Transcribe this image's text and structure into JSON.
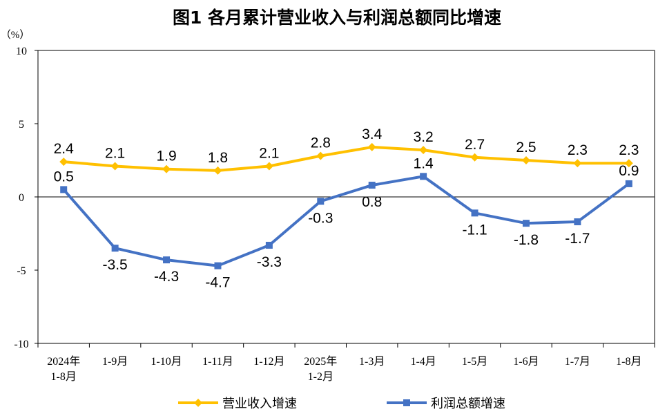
{
  "chart_data": {
    "type": "line",
    "title": "图1  各月累计营业收入与利润总额同比增速",
    "unit_label": "（%）",
    "ylim": [
      -10,
      10
    ],
    "yticks": [
      10,
      5,
      0,
      -5,
      -10
    ],
    "categories": [
      [
        "2024年",
        "1-8月"
      ],
      [
        "1-9月"
      ],
      [
        "1-10月"
      ],
      [
        "1-11月"
      ],
      [
        "1-12月"
      ],
      [
        "2025年",
        "1-2月"
      ],
      [
        "1-3月"
      ],
      [
        "1-4月"
      ],
      [
        "1-5月"
      ],
      [
        "1-6月"
      ],
      [
        "1-7月"
      ],
      [
        "1-8月"
      ]
    ],
    "series": [
      {
        "name": "营业收入增速",
        "color": "#FFC000",
        "marker": "diamond",
        "values": [
          2.4,
          2.1,
          1.9,
          1.8,
          2.1,
          2.8,
          3.4,
          3.2,
          2.7,
          2.5,
          2.3,
          2.3
        ],
        "labels": [
          "2.4",
          "2.1",
          "1.9",
          "1.8",
          "2.1",
          "2.8",
          "3.4",
          "3.2",
          "2.7",
          "2.5",
          "2.3",
          "2.3"
        ]
      },
      {
        "name": "利润总额增速",
        "color": "#4472C4",
        "marker": "square",
        "values": [
          0.5,
          -3.5,
          -4.3,
          -4.7,
          -3.3,
          -0.3,
          0.8,
          1.4,
          -1.1,
          -1.8,
          -1.7,
          0.9
        ],
        "labels": [
          "0.5",
          "-3.5",
          "-4.3",
          "-4.7",
          "-3.3",
          "-0.3",
          "0.8",
          "1.4",
          "-1.1",
          "-1.8",
          "-1.7",
          "0.9"
        ]
      }
    ],
    "legend_position": "bottom"
  }
}
